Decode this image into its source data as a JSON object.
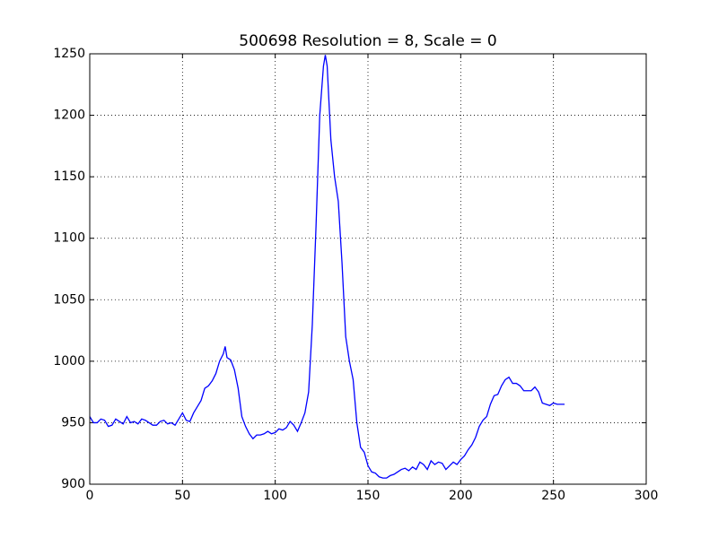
{
  "chart_data": {
    "type": "line",
    "title": "500698 Resolution = 8, Scale = 0",
    "x": [
      0,
      2,
      4,
      6,
      8,
      10,
      12,
      14,
      16,
      18,
      20,
      22,
      24,
      26,
      28,
      30,
      32,
      34,
      36,
      38,
      40,
      42,
      44,
      46,
      48,
      50,
      52,
      54,
      56,
      58,
      60,
      62,
      64,
      66,
      68,
      70,
      72,
      73,
      74,
      76,
      78,
      80,
      82,
      84,
      86,
      88,
      90,
      92,
      94,
      96,
      98,
      100,
      102,
      104,
      106,
      108,
      110,
      112,
      114,
      116,
      118,
      120,
      122,
      124,
      126,
      127,
      128,
      130,
      132,
      134,
      136,
      138,
      140,
      142,
      144,
      146,
      148,
      150,
      152,
      154,
      156,
      158,
      160,
      162,
      164,
      166,
      168,
      170,
      172,
      174,
      176,
      178,
      180,
      182,
      184,
      186,
      188,
      190,
      192,
      194,
      196,
      198,
      200,
      202,
      204,
      206,
      208,
      210,
      212,
      214,
      216,
      218,
      220,
      222,
      224,
      226,
      228,
      230,
      232,
      234,
      236,
      238,
      240,
      242,
      244,
      246,
      248,
      250,
      252,
      254,
      256
    ],
    "values": [
      955,
      950,
      950,
      953,
      952,
      947,
      948,
      953,
      951,
      949,
      955,
      950,
      951,
      949,
      953,
      952,
      950,
      948,
      948,
      951,
      952,
      949,
      950,
      948,
      953,
      958,
      952,
      951,
      958,
      963,
      968,
      978,
      980,
      984,
      990,
      1000,
      1006,
      1012,
      1003,
      1001,
      993,
      978,
      955,
      947,
      941,
      937,
      940,
      940,
      941,
      943,
      941,
      942,
      945,
      944,
      946,
      951,
      948,
      943,
      950,
      958,
      975,
      1030,
      1110,
      1200,
      1240,
      1249,
      1240,
      1180,
      1150,
      1130,
      1080,
      1020,
      1000,
      985,
      950,
      930,
      926,
      915,
      910,
      909,
      906,
      905,
      905,
      907,
      908,
      910,
      912,
      913,
      911,
      914,
      912,
      918,
      916,
      912,
      919,
      916,
      918,
      917,
      912,
      915,
      918,
      916,
      920,
      923,
      928,
      932,
      938,
      947,
      952,
      955,
      965,
      972,
      973,
      980,
      985,
      987,
      982,
      982,
      980,
      976,
      976,
      976,
      979,
      975,
      966,
      965,
      964,
      966,
      965,
      965,
      965
    ],
    "color": "#0000ff",
    "xlim": [
      0,
      300
    ],
    "xticks": [
      0,
      50,
      100,
      150,
      200,
      250,
      300
    ],
    "ylim": [
      900,
      1250
    ],
    "yticks": [
      900,
      950,
      1000,
      1050,
      1100,
      1150,
      1200,
      1250
    ],
    "grid": true
  }
}
